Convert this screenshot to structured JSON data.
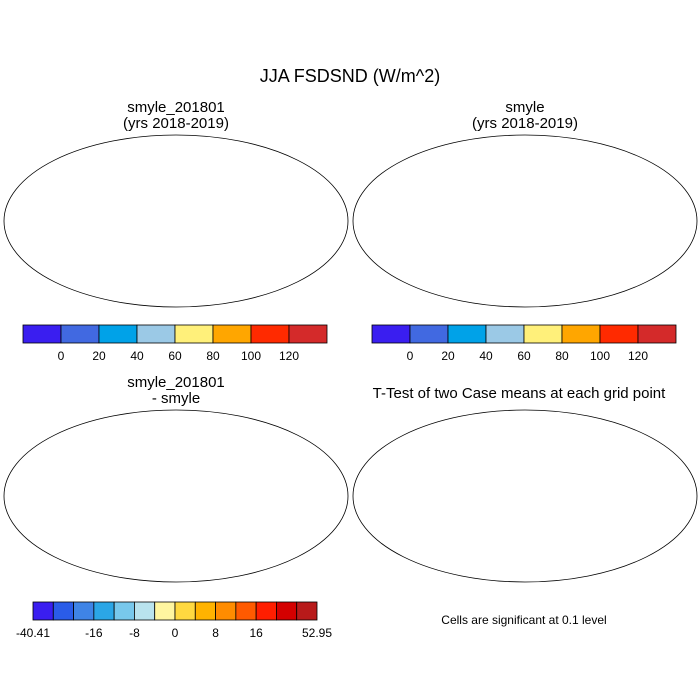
{
  "page": {
    "title": "JJA FSDSND (W/m^2)"
  },
  "colors": {
    "ocean": "#ffffff",
    "coast": "#000000",
    "significant": "#ff0000"
  },
  "panels": [
    {
      "title_line1": "smyle_201801",
      "title_line2": "(yrs 2018-2019)"
    },
    {
      "title_line1": "smyle",
      "title_line2": "(yrs 2018-2019)"
    },
    {
      "title_line1": "smyle_201801",
      "title_line2": "- smyle"
    },
    {
      "title_line1": "T-Test of two Case means at each grid point",
      "title_line2": "",
      "footer": "Cells are significant at 0.1 level"
    }
  ],
  "colorbars": {
    "mean": {
      "colors": [
        "#3a1ef0",
        "#4169e1",
        "#00a2e8",
        "#9bc9e6",
        "#fff07a",
        "#ffa600",
        "#ff2a00",
        "#d42a2a"
      ],
      "labels": [
        "0",
        "20",
        "40",
        "60",
        "80",
        "100",
        "120"
      ]
    },
    "diff": {
      "colors": [
        "#3a1ef0",
        "#2a5ce8",
        "#3f84e6",
        "#2ba6e6",
        "#78c8ec",
        "#b9e3ee",
        "#fff6a0",
        "#ffd940",
        "#ffb300",
        "#ff8c00",
        "#ff5a00",
        "#ff1e00",
        "#d40000",
        "#b81a1a"
      ],
      "labels": [
        "-40.41",
        "-16",
        "-8",
        "0",
        "8",
        "16",
        "52.95"
      ]
    }
  },
  "chart_data": [
    {
      "type": "heatmap",
      "title": "smyle_201801 (yrs 2018-2019)",
      "levels": [
        0,
        20,
        40,
        60,
        80,
        100,
        120
      ],
      "units": "W/m^2"
    },
    {
      "type": "heatmap",
      "title": "smyle (yrs 2018-2019)",
      "levels": [
        0,
        20,
        40,
        60,
        80,
        100,
        120
      ],
      "units": "W/m^2"
    },
    {
      "type": "heatmap",
      "title": "smyle_201801 - smyle",
      "levels": [
        -40.41,
        -16,
        -8,
        0,
        8,
        16,
        52.95
      ],
      "units": "W/m^2"
    },
    {
      "type": "heatmap",
      "title": "T-Test of two Case means at each grid point",
      "significance_level": 0.1
    }
  ]
}
